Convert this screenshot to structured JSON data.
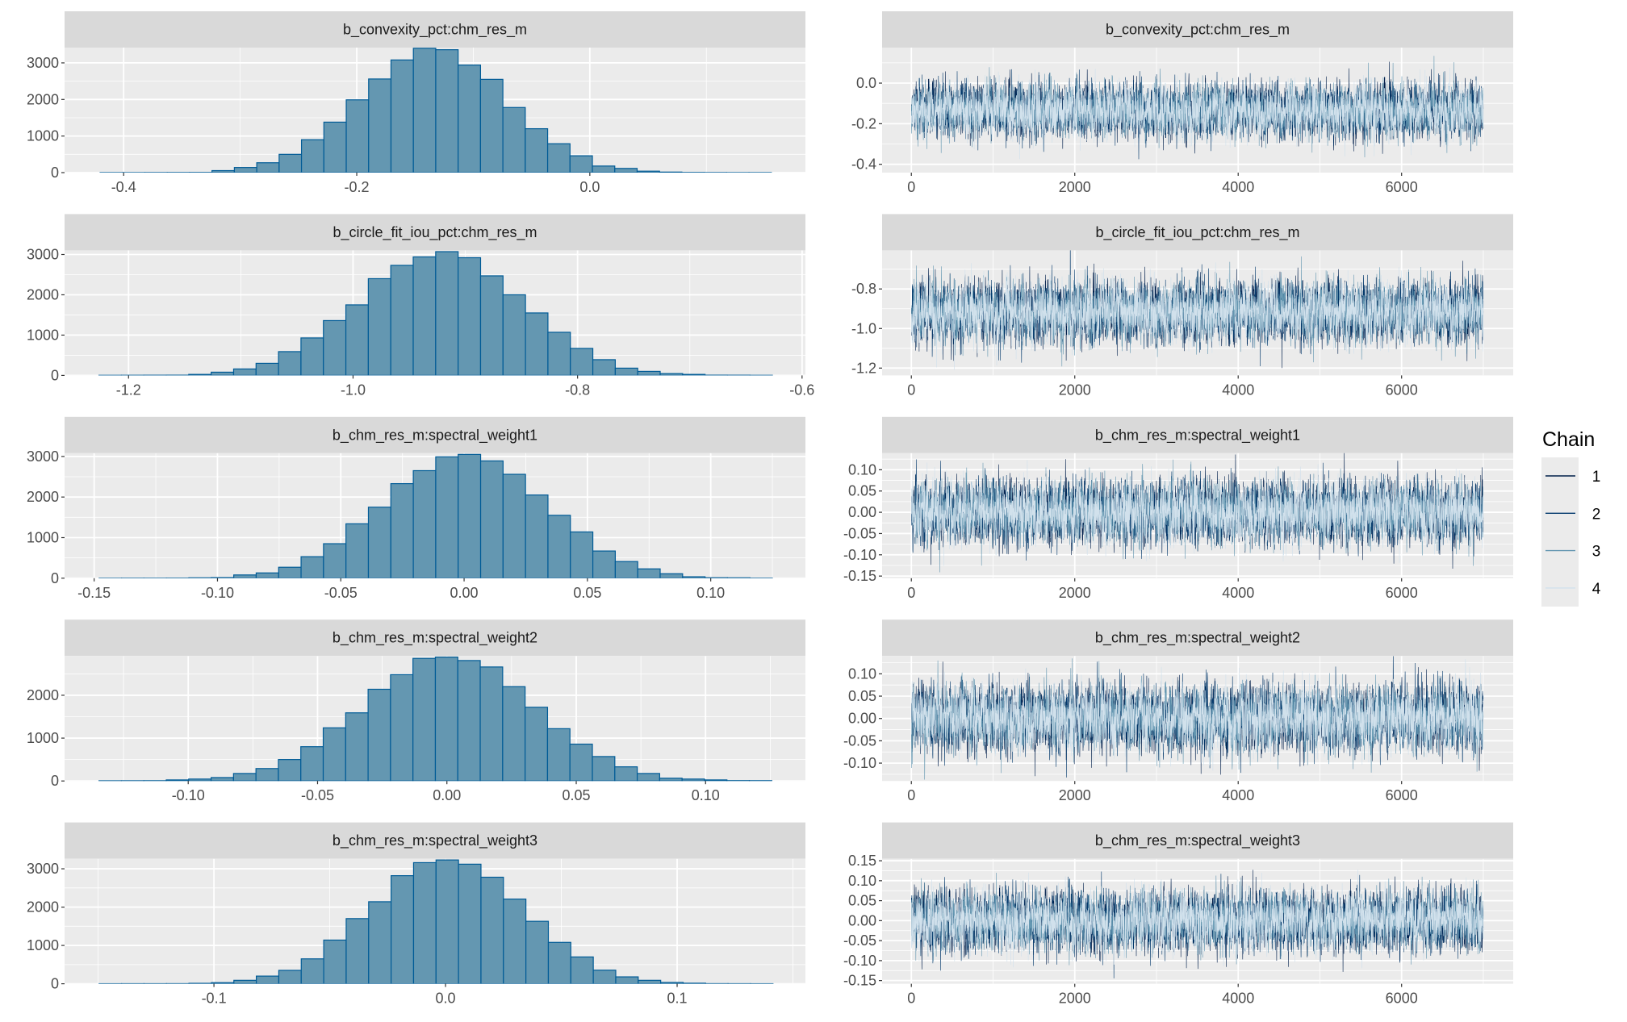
{
  "colors": {
    "panel_bg": "#ebebeb",
    "strip_bg": "#d9d9d9",
    "grid": "#ffffff",
    "hist_fill": "#6497b1",
    "hist_outline": "#005b96",
    "axis_text": "#4d4d4d"
  },
  "legend": {
    "title": "Chain",
    "items": [
      {
        "label": "1",
        "color": "#011f4b"
      },
      {
        "label": "2",
        "color": "#03396c"
      },
      {
        "label": "3",
        "color": "#6497b1"
      },
      {
        "label": "4",
        "color": "#d1e1ec"
      }
    ]
  },
  "chart_data": [
    {
      "type": "bar",
      "title": "b_convexity_pct:chm_res_m",
      "bin_start": -0.4202,
      "bin_width": 0.0192,
      "counts": [
        2,
        2,
        3,
        4,
        5,
        55,
        140,
        270,
        500,
        900,
        1380,
        1990,
        2560,
        3080,
        3400,
        3360,
        2940,
        2550,
        1780,
        1200,
        790,
        460,
        180,
        115,
        40,
        15,
        5,
        3,
        2,
        2
      ],
      "xlim": [
        -0.4507,
        0.185
      ],
      "ylim": [
        0,
        3418
      ],
      "xticks": [
        -0.4,
        -0.2,
        0.0
      ],
      "xtick_labels": [
        "-0.4",
        "-0.2",
        "0.0"
      ],
      "yticks": [
        0,
        1000,
        2000,
        3000
      ],
      "ytick_labels": [
        "0",
        "1000",
        "2000",
        "3000"
      ]
    },
    {
      "type": "bar",
      "title": "b_circle_fit_iou_pct:chm_res_m",
      "bin_start": -1.2264,
      "bin_width": 0.02,
      "counts": [
        3,
        4,
        5,
        6,
        25,
        80,
        160,
        300,
        590,
        930,
        1360,
        1750,
        2400,
        2730,
        2940,
        3070,
        2920,
        2470,
        2000,
        1550,
        1070,
        670,
        390,
        180,
        100,
        45,
        25,
        6,
        5,
        3
      ],
      "xlim": [
        -1.257,
        -0.597
      ],
      "ylim": [
        0,
        3102
      ],
      "xticks": [
        -1.2,
        -1.0,
        -0.8,
        -0.6
      ],
      "xtick_labels": [
        "-1.2",
        "-1.0",
        "-0.8",
        "-0.6"
      ],
      "yticks": [
        0,
        1000,
        2000,
        3000
      ],
      "ytick_labels": [
        "0",
        "1000",
        "2000",
        "3000"
      ]
    },
    {
      "type": "bar",
      "title": "b_chm_res_m:spectral_weight1",
      "bin_start": -0.148,
      "bin_width": 0.0091,
      "counts": [
        2,
        3,
        3,
        4,
        10,
        15,
        80,
        130,
        270,
        530,
        850,
        1340,
        1750,
        2330,
        2650,
        2990,
        3050,
        2890,
        2560,
        2050,
        1550,
        1140,
        670,
        410,
        230,
        110,
        35,
        12,
        10,
        3
      ],
      "xlim": [
        -0.162,
        0.1384
      ],
      "ylim": [
        0,
        3081
      ],
      "xticks": [
        -0.15,
        -0.1,
        -0.05,
        0.0,
        0.05,
        0.1
      ],
      "xtick_labels": [
        "-0.15",
        "-0.10",
        "-0.05",
        "0.00",
        "0.05",
        "0.10"
      ],
      "yticks": [
        0,
        1000,
        2000,
        3000
      ],
      "ytick_labels": [
        "0",
        "1000",
        "2000",
        "3000"
      ]
    },
    {
      "type": "bar",
      "title": "b_chm_res_m:spectral_weight2",
      "bin_start": -0.1345,
      "bin_width": 0.00867,
      "counts": [
        4,
        5,
        6,
        25,
        45,
        80,
        175,
        290,
        500,
        800,
        1240,
        1590,
        2140,
        2480,
        2860,
        2890,
        2810,
        2660,
        2200,
        1720,
        1220,
        860,
        570,
        330,
        175,
        65,
        45,
        25,
        8,
        7
      ],
      "xlim": [
        -0.1478,
        0.1386
      ],
      "ylim": [
        0,
        2917
      ],
      "xticks": [
        -0.1,
        -0.05,
        0.0,
        0.05,
        0.1
      ],
      "xtick_labels": [
        "-0.10",
        "-0.05",
        "0.00",
        "0.05",
        "0.10"
      ],
      "yticks": [
        0,
        1000,
        2000
      ],
      "ytick_labels": [
        "0",
        "1000",
        "2000"
      ]
    },
    {
      "type": "bar",
      "title": "b_chm_res_m:spectral_weight3",
      "bin_start": -0.1496,
      "bin_width": 0.0097,
      "counts": [
        2,
        3,
        3,
        4,
        12,
        30,
        90,
        200,
        350,
        650,
        1140,
        1700,
        2140,
        2820,
        3160,
        3230,
        3120,
        2780,
        2210,
        1630,
        1080,
        700,
        355,
        180,
        90,
        35,
        15,
        4,
        3,
        2
      ],
      "xlim": [
        -0.1645,
        0.1554
      ],
      "ylim": [
        0,
        3262
      ],
      "xticks": [
        -0.1,
        0.0,
        0.1
      ],
      "xtick_labels": [
        "-0.1",
        "0.0",
        "0.1"
      ],
      "yticks": [
        0,
        1000,
        2000,
        3000
      ],
      "ytick_labels": [
        "0",
        "1000",
        "2000",
        "3000"
      ]
    },
    {
      "type": "line",
      "title": "b_convexity_pct:chm_res_m",
      "iterations": 7000,
      "chains": 4,
      "mean": -0.135,
      "sd": 0.065,
      "xlim": [
        -358,
        7366
      ],
      "ylim": [
        -0.441,
        0.175
      ],
      "xticks": [
        0,
        2000,
        4000,
        6000
      ],
      "xtick_labels": [
        "0",
        "2000",
        "4000",
        "6000"
      ],
      "yticks": [
        -0.4,
        -0.2,
        0.0
      ],
      "ytick_labels": [
        "-0.4",
        "-0.2",
        "0.0"
      ]
    },
    {
      "type": "line",
      "title": "b_circle_fit_iou_pct:chm_res_m",
      "iterations": 7000,
      "chains": 4,
      "mean": -0.915,
      "sd": 0.075,
      "xlim": [
        -358,
        7366
      ],
      "ylim": [
        -1.237,
        -0.605
      ],
      "xticks": [
        0,
        2000,
        4000,
        6000
      ],
      "xtick_labels": [
        "0",
        "2000",
        "4000",
        "6000"
      ],
      "yticks": [
        -1.2,
        -1.0,
        -0.8
      ],
      "ytick_labels": [
        "-1.2",
        "-1.0",
        "-0.8"
      ]
    },
    {
      "type": "line",
      "title": "b_chm_res_m:spectral_weight1",
      "iterations": 7000,
      "chains": 4,
      "mean": 0.0,
      "sd": 0.036,
      "xlim": [
        -358,
        7366
      ],
      "ylim": [
        -0.155,
        0.139
      ],
      "xticks": [
        0,
        2000,
        4000,
        6000
      ],
      "xtick_labels": [
        "0",
        "2000",
        "4000",
        "6000"
      ],
      "yticks": [
        -0.15,
        -0.1,
        -0.05,
        0.0,
        0.05,
        0.1
      ],
      "ytick_labels": [
        "-0.15",
        "-0.10",
        "-0.05",
        "0.00",
        "0.05",
        "0.10"
      ]
    },
    {
      "type": "line",
      "title": "b_chm_res_m:spectral_weight2",
      "iterations": 7000,
      "chains": 4,
      "mean": 0.0,
      "sd": 0.036,
      "xlim": [
        -358,
        7366
      ],
      "ylim": [
        -0.14,
        0.14
      ],
      "xticks": [
        0,
        2000,
        4000,
        6000
      ],
      "xtick_labels": [
        "0",
        "2000",
        "4000",
        "6000"
      ],
      "yticks": [
        -0.1,
        -0.05,
        0.0,
        0.05,
        0.1
      ],
      "ytick_labels": [
        "-0.10",
        "-0.05",
        "0.00",
        "0.05",
        "0.10"
      ]
    },
    {
      "type": "line",
      "title": "b_chm_res_m:spectral_weight3",
      "iterations": 7000,
      "chains": 4,
      "mean": 0.0,
      "sd": 0.036,
      "xlim": [
        -358,
        7366
      ],
      "ylim": [
        -0.158,
        0.155
      ],
      "xticks": [
        0,
        2000,
        4000,
        6000
      ],
      "xtick_labels": [
        "0",
        "2000",
        "4000",
        "6000"
      ],
      "yticks": [
        -0.15,
        -0.1,
        -0.05,
        0.0,
        0.05,
        0.1,
        0.15
      ],
      "ytick_labels": [
        "-0.15",
        "-0.10",
        "-0.05",
        "0.00",
        "0.05",
        "0.10",
        "0.15"
      ]
    }
  ]
}
